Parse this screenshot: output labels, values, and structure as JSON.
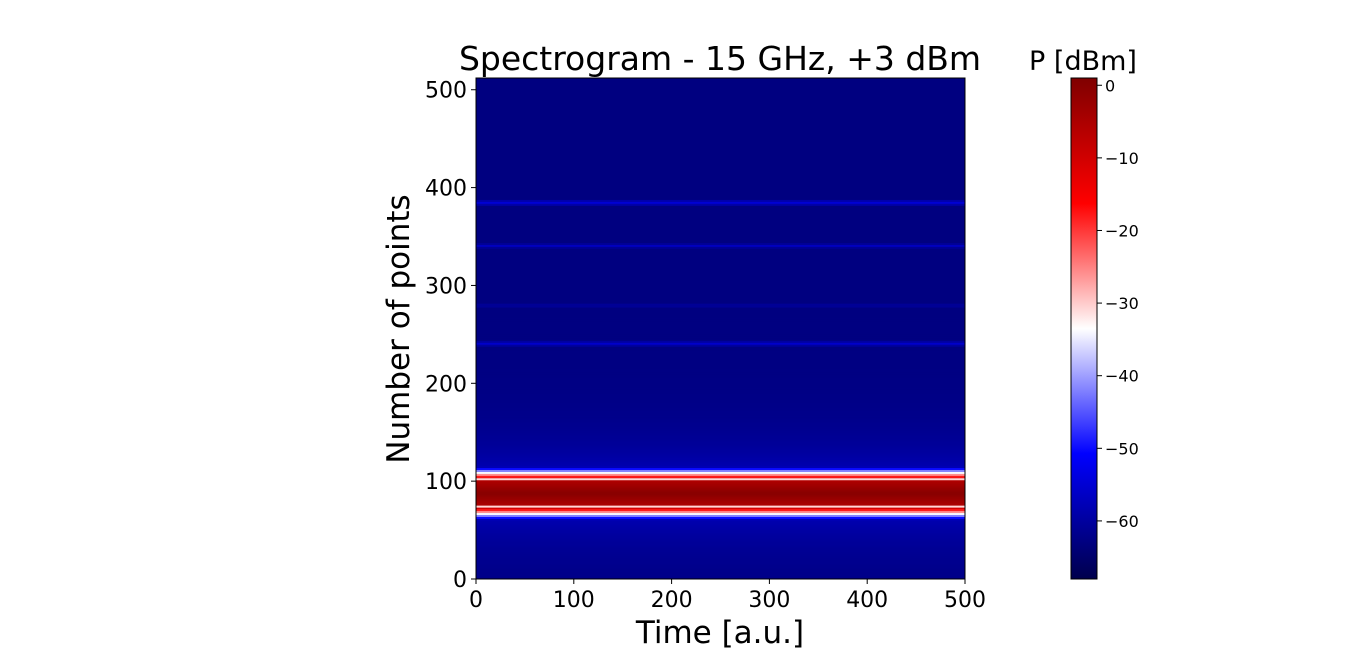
{
  "chart_data": {
    "type": "heatmap",
    "title": "Spectrogram - 15 GHz, +3 dBm",
    "xlabel": "Time [a.u.]",
    "ylabel": "Number of points",
    "xlim": [
      0,
      500
    ],
    "ylim": [
      0,
      512
    ],
    "x_ticks": [
      0,
      100,
      200,
      300,
      400,
      500
    ],
    "y_ticks": [
      0,
      100,
      200,
      300,
      400,
      500
    ],
    "colorbar": {
      "label": "P [dBm]",
      "range": [
        -68,
        1
      ],
      "ticks": [
        0,
        -10,
        -20,
        -30,
        -40,
        -50,
        -60
      ],
      "colormap": "seismic",
      "colormap_stops": [
        "#00004c",
        "#0000ff",
        "#ffffff",
        "#ff0000",
        "#7f0000"
      ]
    },
    "background_level_dbm": -63,
    "bands": [
      {
        "y_center": 88,
        "half_width": 14,
        "peak_dbm": 0
      },
      {
        "y_center": 385,
        "half_width": 3,
        "peak_dbm": -55
      },
      {
        "y_center": 341,
        "half_width": 3,
        "peak_dbm": -57
      },
      {
        "y_center": 280,
        "half_width": 3,
        "peak_dbm": -59
      },
      {
        "y_center": 241,
        "half_width": 3,
        "peak_dbm": -56
      }
    ],
    "grid": false
  }
}
